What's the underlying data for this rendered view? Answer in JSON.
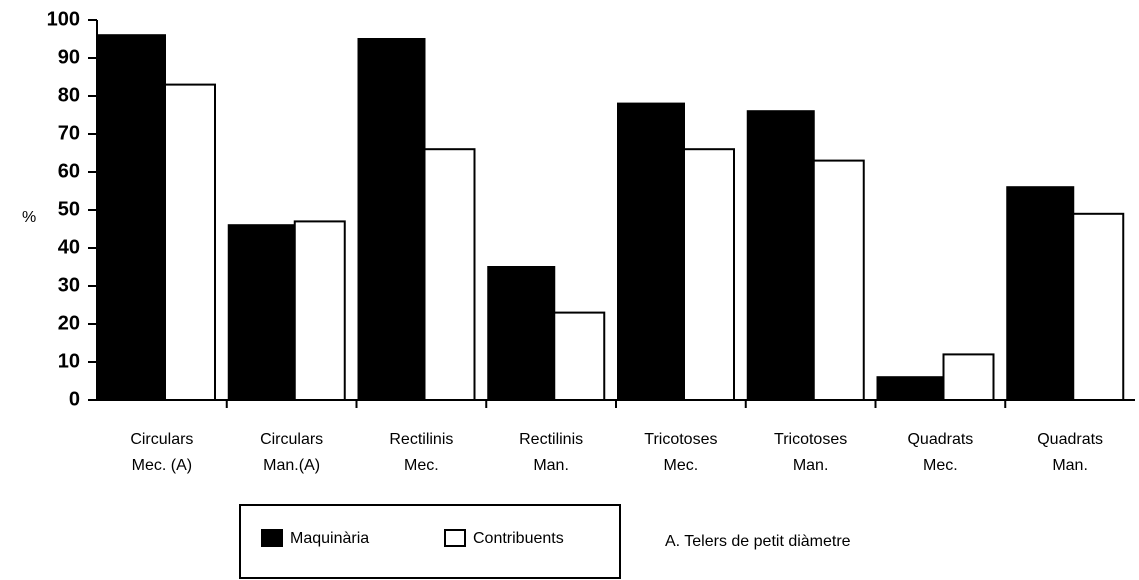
{
  "chart_data": {
    "type": "bar",
    "ylabel": "%",
    "categories": [
      [
        "Circulars",
        "Mec. (A)"
      ],
      [
        "Circulars",
        "Man.(A)"
      ],
      [
        "Rectilinis",
        "Mec."
      ],
      [
        "Rectilinis",
        "Man."
      ],
      [
        "Tricotoses",
        "Mec."
      ],
      [
        "Tricotoses",
        "Man."
      ],
      [
        "Quadrats",
        "Mec."
      ],
      [
        "Quadrats",
        "Man."
      ]
    ],
    "series": [
      {
        "name": "Maquinària",
        "color": "#000000",
        "values": [
          96,
          46,
          95,
          35,
          78,
          76,
          6,
          56
        ]
      },
      {
        "name": "Contribuents",
        "color": "#ffffff",
        "values": [
          83,
          47,
          66,
          23,
          66,
          63,
          12,
          49
        ]
      }
    ],
    "ylim": [
      0,
      100
    ],
    "yticks": [
      0,
      10,
      20,
      30,
      40,
      50,
      60,
      70,
      80,
      90,
      100
    ],
    "grid": false,
    "annotation": "A. Telers de petit diàmetre"
  }
}
